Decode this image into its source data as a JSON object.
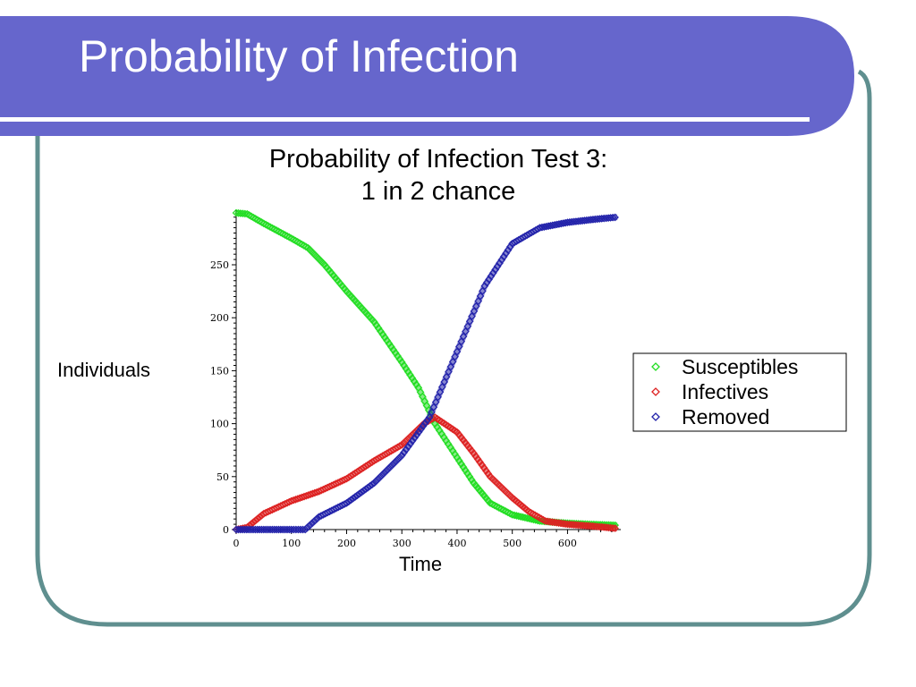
{
  "slide": {
    "title": "Probability of Infection",
    "colors": {
      "banner": "#6666cc",
      "border": "#5f8f8f",
      "underline": "#ffffff"
    }
  },
  "chart_data": {
    "type": "scatter",
    "title_lines": [
      "Probability of Infection Test 3:",
      "1 in 2 chance"
    ],
    "xlabel": "Time",
    "ylabel": "Individuals",
    "xlim": [
      0,
      700
    ],
    "ylim": [
      0,
      300
    ],
    "x_ticks": [
      0,
      100,
      200,
      300,
      400,
      500,
      600
    ],
    "y_ticks": [
      0,
      50,
      100,
      150,
      200,
      250
    ],
    "legend_position": "right",
    "marker": "diamond",
    "series": [
      {
        "name": "Susceptibles",
        "color": "#22dd22",
        "points": [
          [
            0,
            299
          ],
          [
            20,
            298
          ],
          [
            50,
            289
          ],
          [
            100,
            275
          ],
          [
            130,
            266
          ],
          [
            160,
            250
          ],
          [
            200,
            225
          ],
          [
            250,
            196
          ],
          [
            300,
            158
          ],
          [
            330,
            134
          ],
          [
            360,
            100
          ],
          [
            400,
            68
          ],
          [
            430,
            44
          ],
          [
            460,
            25
          ],
          [
            500,
            14
          ],
          [
            550,
            8
          ],
          [
            600,
            6
          ],
          [
            640,
            5
          ],
          [
            690,
            4
          ]
        ]
      },
      {
        "name": "Infectives",
        "color": "#dd2222",
        "points": [
          [
            0,
            0
          ],
          [
            20,
            2
          ],
          [
            50,
            15
          ],
          [
            100,
            27
          ],
          [
            150,
            36
          ],
          [
            200,
            48
          ],
          [
            250,
            65
          ],
          [
            300,
            80
          ],
          [
            340,
            100
          ],
          [
            360,
            106
          ],
          [
            400,
            92
          ],
          [
            430,
            72
          ],
          [
            460,
            50
          ],
          [
            500,
            30
          ],
          [
            530,
            17
          ],
          [
            560,
            8
          ],
          [
            600,
            5
          ],
          [
            650,
            3
          ],
          [
            690,
            1
          ]
        ]
      },
      {
        "name": "Removed",
        "color": "#2222aa",
        "points": [
          [
            0,
            0
          ],
          [
            50,
            0
          ],
          [
            100,
            0
          ],
          [
            125,
            0
          ],
          [
            150,
            12
          ],
          [
            200,
            25
          ],
          [
            250,
            44
          ],
          [
            300,
            70
          ],
          [
            350,
            106
          ],
          [
            400,
            168
          ],
          [
            450,
            230
          ],
          [
            500,
            270
          ],
          [
            550,
            285
          ],
          [
            600,
            290
          ],
          [
            650,
            293
          ],
          [
            690,
            295
          ]
        ]
      }
    ]
  }
}
